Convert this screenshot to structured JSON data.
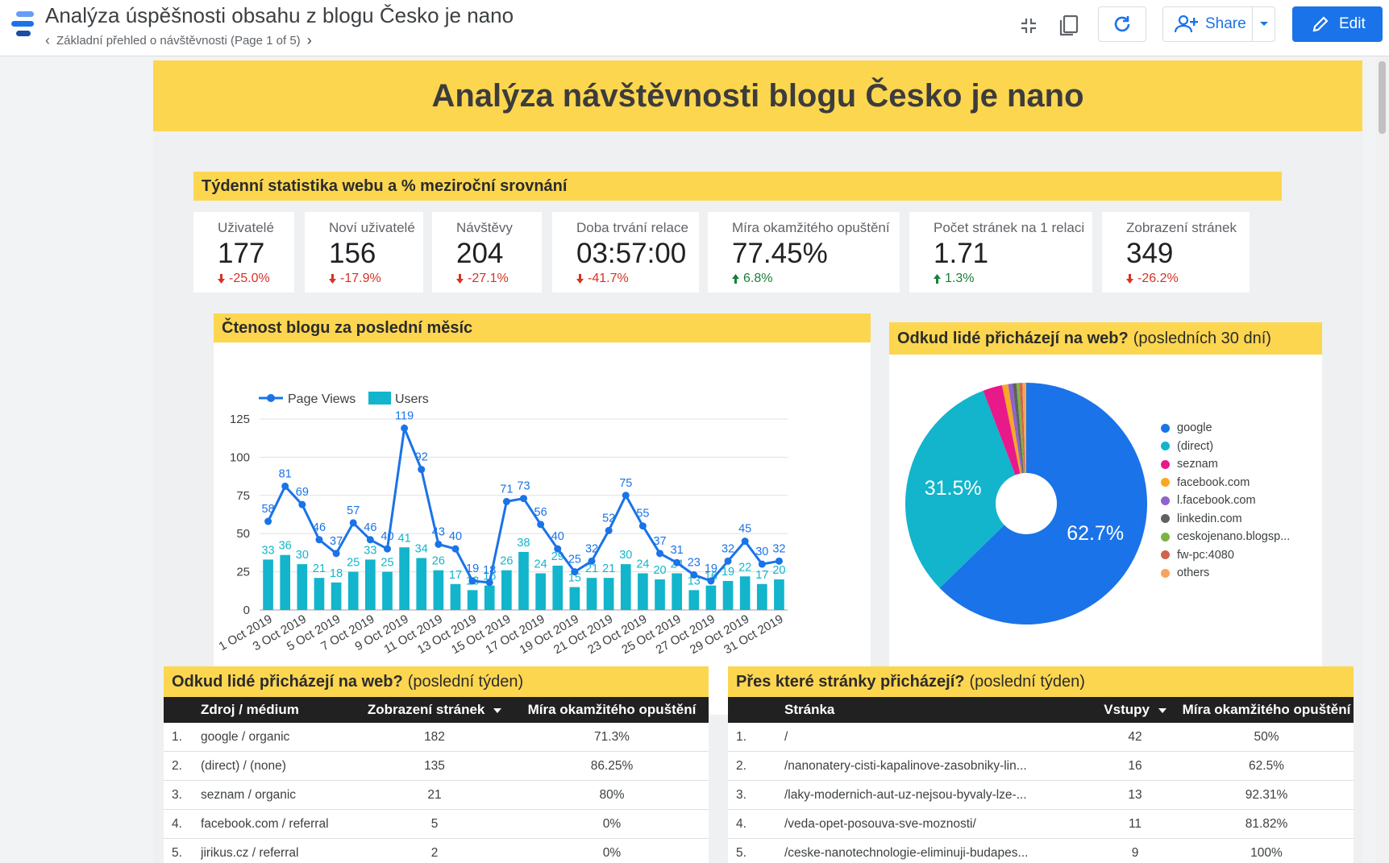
{
  "app": {
    "title": "Analýza úspěšnosti obsahu z blogu Česko je nano",
    "breadcrumb": "Základní přehled o návštěvnosti (Page 1 of 5)",
    "share_label": "Share",
    "edit_label": "Edit"
  },
  "report": {
    "header": "Analýza návštěvnosti blogu Česko je nano",
    "weekly_title": "Týdenní statistika webu a  % meziroční srovnání",
    "kpis": [
      {
        "label": "Uživatelé",
        "value": "177",
        "delta": "-25.0%",
        "dir": "down"
      },
      {
        "label": "Noví uživatelé",
        "value": "156",
        "delta": "-17.9%",
        "dir": "down"
      },
      {
        "label": "Návštěvy",
        "value": "204",
        "delta": "-27.1%",
        "dir": "down"
      },
      {
        "label": "Doba trvání relace",
        "value": "03:57:00",
        "delta": "-41.7%",
        "dir": "down"
      },
      {
        "label": "Míra okamžitého opuštění",
        "value": "77.45%",
        "delta": "6.8%",
        "dir": "up"
      },
      {
        "label": "Počet stránek na 1 relaci",
        "value": "1.71",
        "delta": "1.3%",
        "dir": "up"
      },
      {
        "label": "Zobrazení stránek",
        "value": "349",
        "delta": "-26.2%",
        "dir": "down"
      }
    ],
    "readership_title": "Čtenost blogu za poslední měsíc",
    "sources_pie_title": "Odkud lidé přicházejí na web?",
    "sources_pie_sub": "(posledních 30 dní)",
    "sources_table": {
      "title": "Odkud lidé přicházejí na web?",
      "sub": "(poslední týden)",
      "headers": [
        "Zdroj / médium",
        "Zobrazení stránek",
        "Míra okamžitého opuštění"
      ],
      "rows": [
        [
          "1.",
          "google / organic",
          "182",
          "71.3%"
        ],
        [
          "2.",
          "(direct) / (none)",
          "135",
          "86.25%"
        ],
        [
          "3.",
          "seznam / organic",
          "21",
          "80%"
        ],
        [
          "4.",
          "facebook.com / referral",
          "5",
          "0%"
        ],
        [
          "5.",
          "jirikus.cz / referral",
          "2",
          "0%"
        ]
      ]
    },
    "pages_table": {
      "title": "Přes které stránky přicházejí?",
      "sub": "(poslední týden)",
      "headers": [
        "Stránka",
        "Vstupy",
        "Míra okamžitého opuštění"
      ],
      "rows": [
        [
          "1.",
          "/",
          "42",
          "50%"
        ],
        [
          "2.",
          "/nanonatery-cisti-kapalinove-zasobniky-lin...",
          "16",
          "62.5%"
        ],
        [
          "3.",
          "/laky-modernich-aut-uz-nejsou-byvaly-lze-...",
          "13",
          "92.31%"
        ],
        [
          "4.",
          "/veda-opet-posouva-sve-moznosti/",
          "11",
          "81.82%"
        ],
        [
          "5.",
          "/ceske-nanotechnologie-eliminuji-budapes...",
          "9",
          "100%"
        ]
      ]
    }
  },
  "chart_data": [
    {
      "type": "bar+line",
      "title": "Čtenost blogu za poslední měsíc",
      "legend": [
        "Page Views",
        "Users"
      ],
      "legend_position": "top-left",
      "x": [
        "1 Oct 2019",
        "2 Oct 2019",
        "3 Oct 2019",
        "4 Oct 2019",
        "5 Oct 2019",
        "6 Oct 2019",
        "7 Oct 2019",
        "8 Oct 2019",
        "9 Oct 2019",
        "10 Oct 2019",
        "11 Oct 2019",
        "12 Oct 2019",
        "13 Oct 2019",
        "14 Oct 2019",
        "15 Oct 2019",
        "16 Oct 2019",
        "17 Oct 2019",
        "18 Oct 2019",
        "19 Oct 2019",
        "20 Oct 2019",
        "21 Oct 2019",
        "22 Oct 2019",
        "23 Oct 2019",
        "24 Oct 2019",
        "25 Oct 2019",
        "26 Oct 2019",
        "27 Oct 2019",
        "28 Oct 2019",
        "29 Oct 2019",
        "30 Oct 2019",
        "31 Oct 2019"
      ],
      "x_tick_labels": [
        "1 Oct 2019",
        "3 Oct 2019",
        "5 Oct 2019",
        "7 Oct 2019",
        "9 Oct 2019",
        "11 Oct 2019",
        "13 Oct 2019",
        "15 Oct 2019",
        "17 Oct 2019",
        "19 Oct 2019",
        "21 Oct 2019",
        "23 Oct 2019",
        "25 Oct 2019",
        "27 Oct 2019",
        "29 Oct 2019",
        "31 Oct 2019"
      ],
      "series": [
        {
          "name": "Page Views",
          "kind": "line",
          "color": "#1a73e8",
          "values": [
            58,
            81,
            69,
            46,
            37,
            57,
            46,
            40,
            119,
            92,
            43,
            40,
            19,
            18,
            71,
            73,
            56,
            40,
            25,
            32,
            52,
            75,
            55,
            37,
            31,
            23,
            19,
            32,
            45,
            30,
            32
          ]
        },
        {
          "name": "Users",
          "kind": "bar",
          "color": "#12b5cb",
          "values": [
            33,
            36,
            30,
            21,
            18,
            25,
            33,
            25,
            41,
            34,
            26,
            17,
            13,
            16,
            26,
            38,
            24,
            29,
            15,
            21,
            21,
            30,
            24,
            20,
            24,
            13,
            16,
            19,
            22,
            17,
            20
          ]
        }
      ],
      "y_ticks": [
        0,
        25,
        50,
        75,
        100,
        125
      ],
      "ylim": [
        0,
        125
      ],
      "grid": true
    },
    {
      "type": "pie",
      "title": "Odkud lidé přicházejí na web? (posledních 30 dní)",
      "legend_position": "right",
      "slices": [
        {
          "name": "google",
          "value": 62.7,
          "label": "62.7%",
          "color": "#1a73e8"
        },
        {
          "name": "(direct)",
          "value": 31.5,
          "label": "31.5%",
          "color": "#12b5cb"
        },
        {
          "name": "seznam",
          "value": 2.6,
          "label": "",
          "color": "#e8198b"
        },
        {
          "name": "facebook.com",
          "value": 0.8,
          "label": "",
          "color": "#f9a825"
        },
        {
          "name": "l.facebook.com",
          "value": 0.6,
          "label": "",
          "color": "#8e63ce"
        },
        {
          "name": "linkedin.com",
          "value": 0.5,
          "label": "",
          "color": "#616161"
        },
        {
          "name": "ceskojenano.blogsp...",
          "value": 0.4,
          "label": "",
          "color": "#7cb342"
        },
        {
          "name": "fw-pc:4080",
          "value": 0.4,
          "label": "",
          "color": "#d0644a"
        },
        {
          "name": "others",
          "value": 0.5,
          "label": "",
          "color": "#f6a55c"
        }
      ]
    }
  ]
}
